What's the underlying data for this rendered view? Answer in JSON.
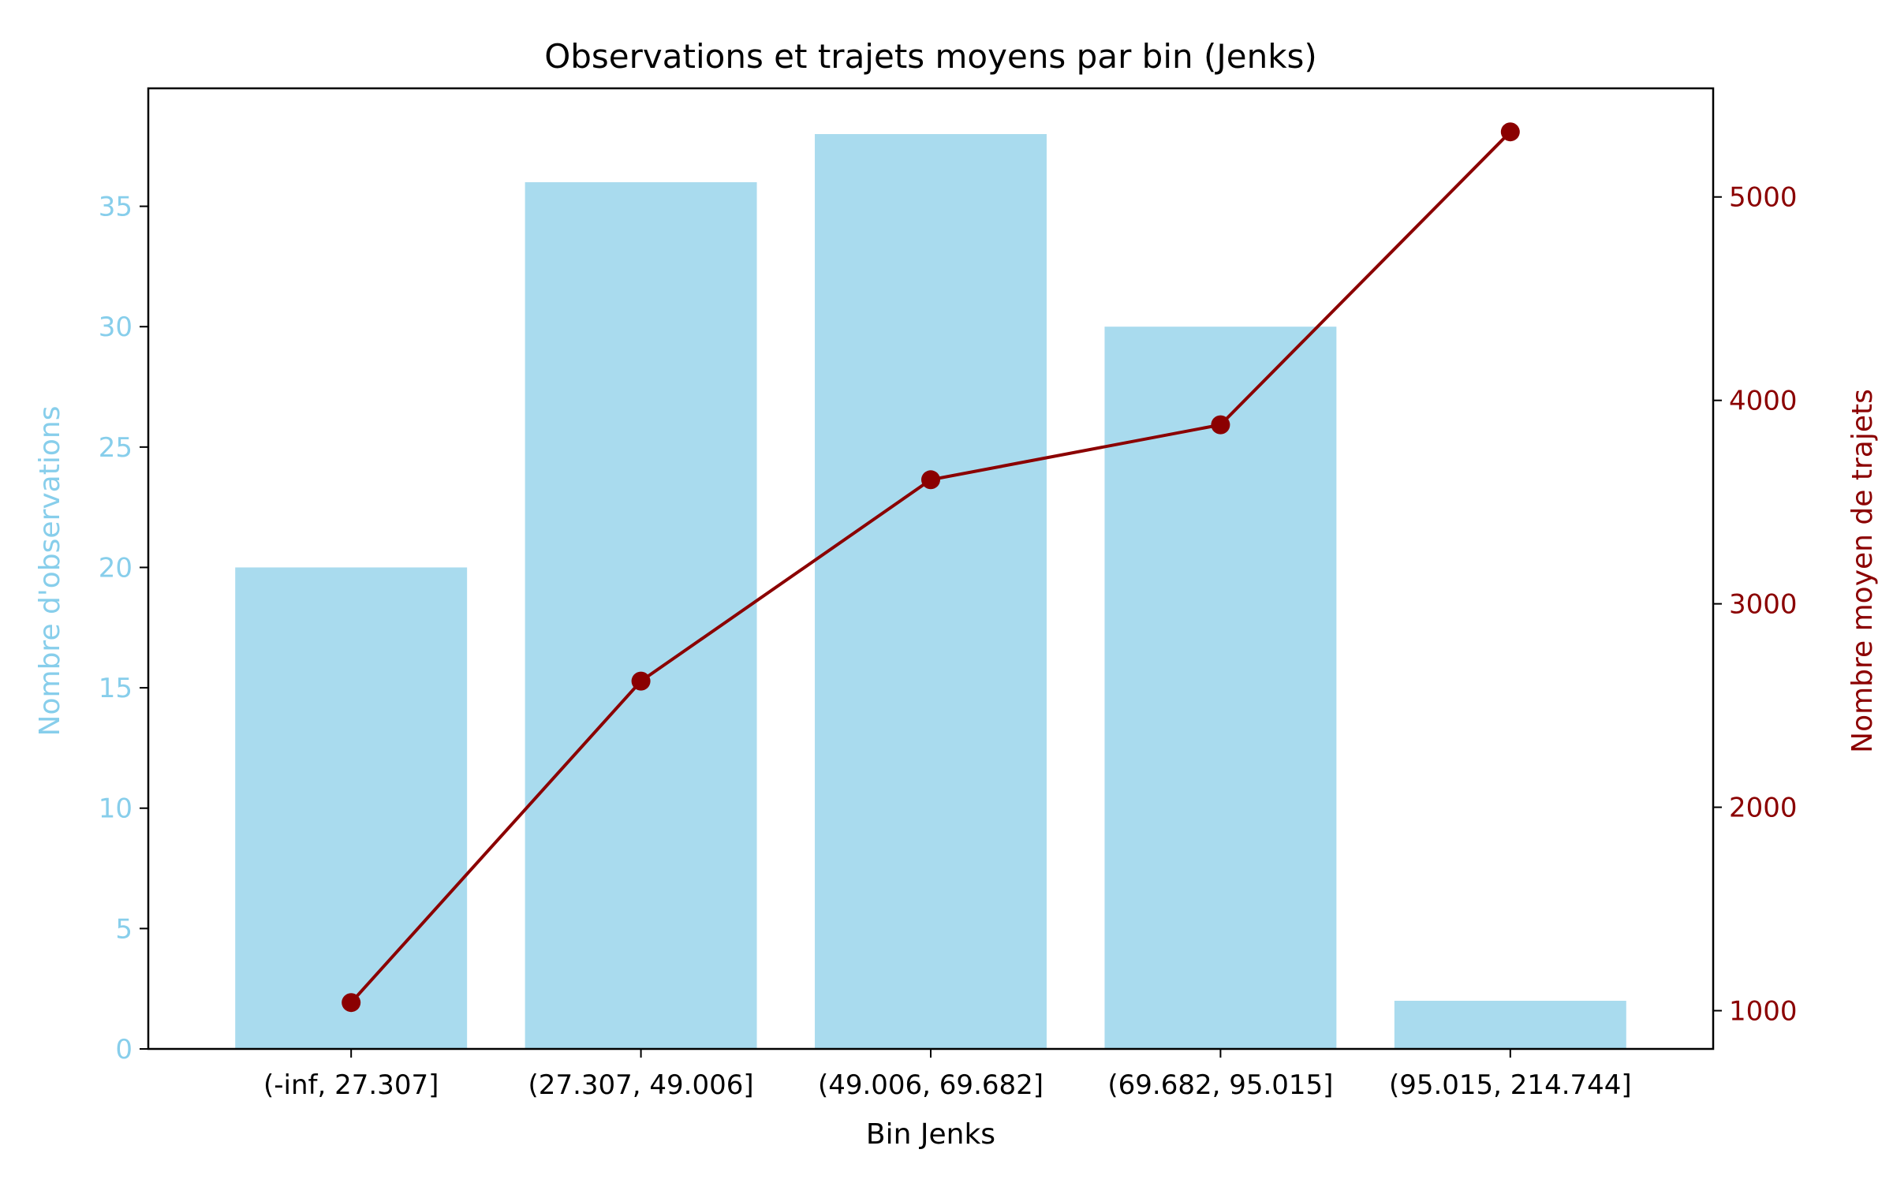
{
  "chart_data": {
    "type": "bar",
    "title": "Observations et trajets moyens par bin (Jenks)",
    "xlabel": "Bin Jenks",
    "ylabel_left": "Nombre d'observations",
    "ylabel_right": "Nombre moyen de trajets",
    "categories": [
      "(-inf, 27.307]",
      "(27.307, 49.006]",
      "(49.006, 69.682]",
      "(69.682, 95.015]",
      "(95.015, 214.744]"
    ],
    "series": [
      {
        "type": "bar",
        "axis": "left",
        "color": "#a9dbee",
        "values": [
          20,
          36,
          38,
          30,
          2
        ]
      },
      {
        "type": "line",
        "axis": "right",
        "color": "#8b0000",
        "marker": "circle",
        "values": [
          1040,
          2620,
          3610,
          3880,
          5320
        ]
      }
    ],
    "ylim_left": [
      0,
      39.9
    ],
    "yticks_left": [
      0,
      5,
      10,
      15,
      20,
      25,
      30,
      35
    ],
    "ylim_right": [
      812,
      5534
    ],
    "yticks_right": [
      1000,
      2000,
      3000,
      4000,
      5000
    ],
    "grid": false,
    "colors": {
      "left_axis": "#87ceeb",
      "right_axis": "#8b0000",
      "bar": "#a9dbee",
      "line": "#8b0000"
    }
  }
}
